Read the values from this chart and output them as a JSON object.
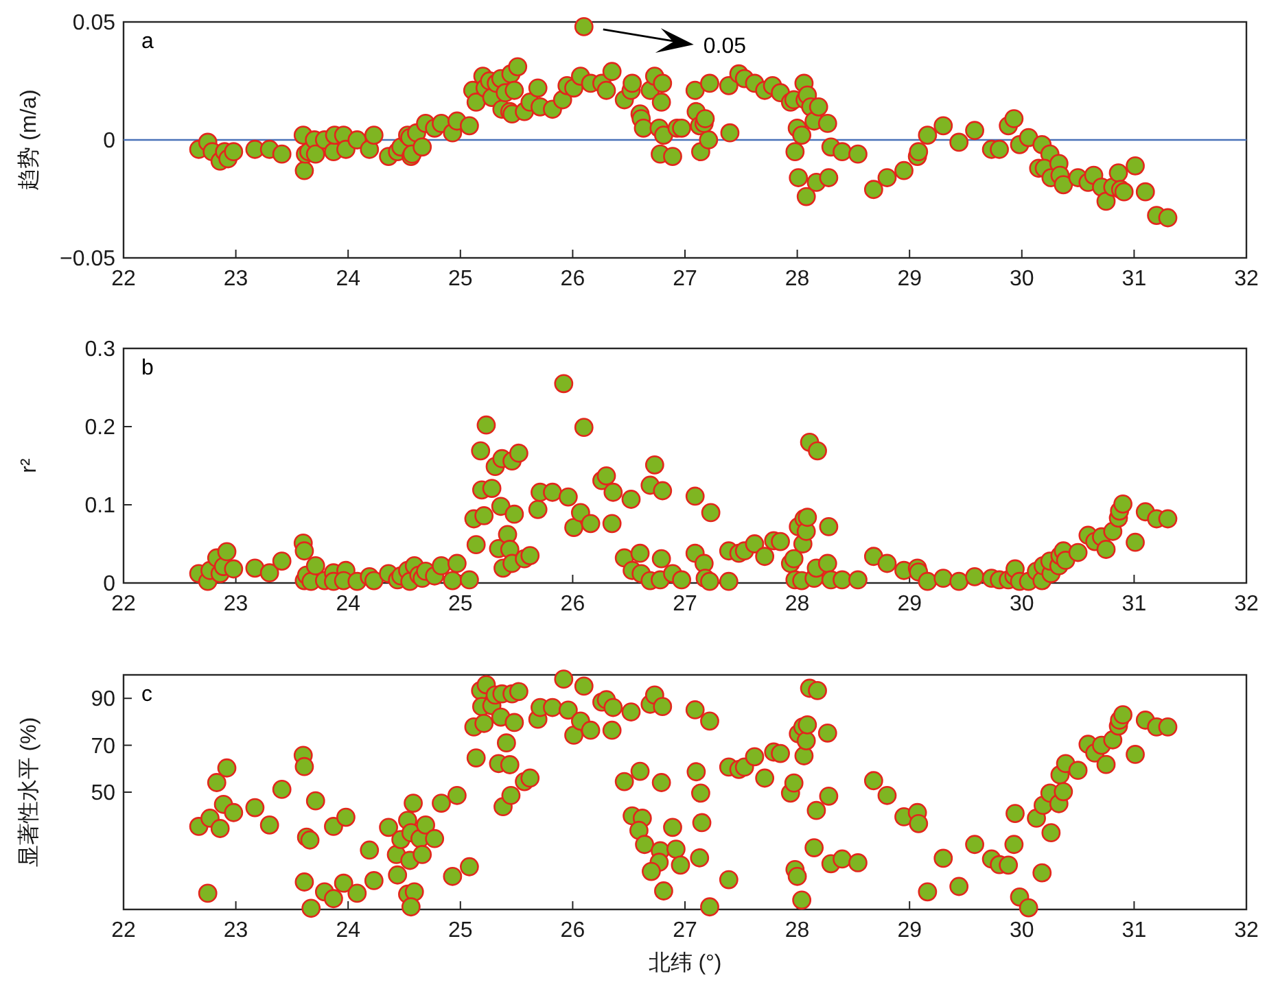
{
  "chart_data": [
    {
      "type": "scatter",
      "ylabel": "趋势 (m/a)",
      "annotations": [
        "a",
        "0.05"
      ],
      "marker": "circle",
      "xlim": [
        22,
        32
      ],
      "xticks": [
        22,
        23,
        24,
        25,
        26,
        27,
        28,
        29,
        30,
        31,
        32
      ],
      "ylim": [
        -0.05,
        0.05
      ],
      "yticks": [
        {
          "value": -0.05,
          "label": "−0.05"
        },
        0,
        0.05
      ],
      "ref_lines": [
        {
          "axis": "y",
          "value": 0,
          "color": "#4a72b8"
        }
      ],
      "x": [
        22.67,
        22.75,
        22.79,
        22.86,
        22.9,
        22.93,
        22.98,
        23.17,
        23.3,
        23.41,
        23.6,
        23.61,
        23.62,
        23.65,
        23.7,
        23.71,
        23.79,
        23.87,
        23.88,
        23.96,
        23.98,
        24.08,
        24.19,
        24.23,
        24.36,
        24.44,
        24.47,
        24.53,
        24.55,
        24.56,
        24.57,
        24.61,
        24.66,
        24.69,
        24.77,
        24.83,
        24.93,
        24.97,
        25.08,
        25.11,
        25.14,
        25.2,
        25.22,
        25.26,
        25.28,
        25.32,
        25.36,
        25.37,
        25.4,
        25.44,
        25.46,
        25.45,
        25.48,
        25.51,
        25.57,
        25.62,
        25.69,
        25.71,
        25.82,
        25.91,
        25.95,
        26.01,
        26.07,
        26.1,
        26.16,
        26.26,
        26.3,
        26.35,
        26.46,
        26.52,
        26.53,
        26.6,
        26.61,
        26.63,
        26.69,
        26.73,
        26.79,
        26.8,
        26.77,
        26.78,
        26.81,
        26.89,
        26.93,
        26.97,
        27.09,
        27.1,
        27.13,
        27.14,
        27.21,
        27.17,
        27.18,
        27.22,
        27.39,
        27.4,
        27.48,
        27.53,
        27.62,
        27.71,
        27.78,
        27.85,
        27.94,
        27.97,
        27.98,
        28.0,
        28.01,
        28.04,
        28.06,
        28.07,
        28.08,
        28.09,
        28.12,
        28.15,
        28.17,
        28.19,
        28.27,
        28.28,
        28.3,
        28.4,
        28.54,
        28.68,
        28.8,
        28.95,
        29.07,
        29.08,
        29.16,
        29.3,
        29.44,
        29.58,
        29.73,
        29.8,
        29.88,
        29.93,
        29.98,
        30.06,
        30.18,
        30.25,
        30.15,
        30.2,
        30.26,
        30.33,
        30.34,
        30.37,
        30.5,
        30.59,
        30.64,
        30.71,
        30.75,
        30.81,
        30.86,
        30.88,
        30.91,
        31.01,
        31.1,
        31.2,
        31.3
      ],
      "series": [
        {
          "color": "#7fb522",
          "values": [
            -0.004,
            -0.001,
            -0.005,
            -0.009,
            -0.005,
            -0.008,
            -0.005,
            -0.004,
            -0.004,
            -0.006,
            0.002,
            -0.013,
            -0.006,
            -0.005,
            0,
            -0.006,
            0,
            -0.005,
            0.002,
            0.002,
            -0.004,
            0,
            -0.004,
            0.002,
            -0.007,
            -0.005,
            -0.003,
            0.002,
            0.001,
            -0.007,
            -0.006,
            0.003,
            -0.003,
            0.007,
            0.005,
            0.007,
            0.003,
            0.008,
            0.006,
            0.021,
            0.016,
            0.027,
            0.022,
            0.025,
            0.018,
            0.024,
            0.026,
            0.013,
            0.02,
            0.012,
            0.011,
            0.028,
            0.021,
            0.031,
            0.012,
            0.016,
            0.022,
            0.014,
            0.013,
            0.017,
            0.023,
            0.022,
            0.027,
            0.048,
            0.024,
            0.024,
            0.021,
            0.029,
            0.017,
            0.021,
            0.024,
            0.011,
            0.009,
            0.005,
            0.021,
            0.027,
            0.016,
            0.024,
            0.005,
            -0.006,
            0.002,
            -0.007,
            0.005,
            0.005,
            0.021,
            0.012,
            0.006,
            -0.005,
            0,
            0.007,
            0.009,
            0.024,
            0.023,
            0.003,
            0.028,
            0.026,
            0.024,
            0.021,
            0.023,
            0.02,
            0.016,
            0.017,
            -0.005,
            0.005,
            -0.016,
            0.002,
            0.024,
            0.017,
            -0.024,
            0.019,
            0.014,
            0.008,
            -0.018,
            0.014,
            0.007,
            -0.016,
            -0.003,
            -0.005,
            -0.006,
            -0.021,
            -0.016,
            -0.013,
            -0.007,
            -0.005,
            0.002,
            0.006,
            -0.001,
            0.004,
            -0.004,
            -0.004,
            0.006,
            0.009,
            -0.002,
            0.001,
            -0.002,
            -0.006,
            -0.012,
            -0.012,
            -0.016,
            -0.01,
            -0.015,
            -0.019,
            -0.016,
            -0.018,
            -0.015,
            -0.02,
            -0.026,
            -0.02,
            -0.014,
            -0.021,
            -0.022,
            -0.011,
            -0.022,
            -0.032,
            -0.033
          ]
        }
      ]
    },
    {
      "type": "scatter",
      "ylabel": "r²",
      "annotations": [
        "b"
      ],
      "marker": "circle",
      "xlim": [
        22,
        32
      ],
      "xticks": [
        22,
        23,
        24,
        25,
        26,
        27,
        28,
        29,
        30,
        31,
        32
      ],
      "ylim": [
        0,
        0.3
      ],
      "yticks": [
        0,
        0.1,
        0.2,
        0.3
      ],
      "x": [
        22.67,
        22.75,
        22.77,
        22.83,
        22.86,
        22.89,
        22.92,
        22.98,
        23.17,
        23.3,
        23.41,
        23.6,
        23.61,
        23.61,
        23.63,
        23.67,
        23.71,
        23.79,
        23.87,
        23.87,
        23.98,
        23.96,
        24.08,
        24.19,
        24.23,
        24.36,
        24.44,
        24.47,
        24.53,
        24.55,
        24.59,
        24.63,
        24.66,
        24.69,
        24.77,
        24.83,
        24.93,
        24.97,
        25.08,
        25.12,
        25.14,
        25.18,
        25.19,
        25.21,
        25.23,
        25.28,
        25.31,
        25.34,
        25.36,
        25.37,
        25.38,
        25.42,
        25.44,
        25.46,
        25.46,
        25.48,
        25.52,
        25.57,
        25.62,
        25.69,
        25.71,
        25.82,
        25.92,
        25.96,
        26.01,
        26.07,
        26.1,
        26.16,
        26.26,
        26.3,
        26.35,
        26.36,
        26.46,
        26.52,
        26.53,
        26.6,
        26.61,
        26.69,
        26.73,
        26.79,
        26.8,
        26.69,
        26.78,
        26.89,
        26.97,
        27.09,
        27.09,
        27.23,
        27.17,
        27.18,
        27.22,
        27.39,
        27.39,
        27.48,
        27.53,
        27.62,
        27.71,
        27.79,
        27.85,
        27.94,
        27.97,
        27.98,
        28.01,
        28.04,
        28.05,
        28.06,
        28.08,
        28.09,
        28.11,
        28.18,
        28.15,
        28.17,
        28.27,
        28.28,
        28.3,
        28.4,
        28.54,
        28.68,
        28.8,
        28.95,
        29.07,
        29.08,
        29.16,
        29.3,
        29.44,
        29.58,
        29.73,
        29.8,
        29.88,
        29.93,
        29.94,
        29.98,
        30.06,
        30.13,
        30.18,
        30.19,
        30.26,
        30.25,
        30.33,
        30.34,
        30.37,
        30.39,
        30.5,
        30.59,
        30.65,
        30.71,
        30.75,
        30.81,
        30.86,
        30.87,
        30.9,
        31.01,
        31.1,
        31.2,
        31.3
      ],
      "series": [
        {
          "color": "#7fb522",
          "values": [
            0.012,
            0.002,
            0.016,
            0.032,
            0.012,
            0.021,
            0.04,
            0.018,
            0.019,
            0.013,
            0.028,
            0.051,
            0.041,
            0.003,
            0.01,
            0.002,
            0.022,
            0.003,
            0.013,
            0.002,
            0.016,
            0.003,
            0.002,
            0.008,
            0.003,
            0.012,
            0.004,
            0.009,
            0.016,
            0.002,
            0.022,
            0.01,
            0.006,
            0.015,
            0.009,
            0.022,
            0.003,
            0.025,
            0.004,
            0.082,
            0.049,
            0.169,
            0.119,
            0.086,
            0.202,
            0.121,
            0.149,
            0.044,
            0.098,
            0.159,
            0.019,
            0.062,
            0.043,
            0.156,
            0.025,
            0.088,
            0.166,
            0.031,
            0.035,
            0.094,
            0.116,
            0.116,
            0.255,
            0.11,
            0.071,
            0.09,
            0.199,
            0.076,
            0.131,
            0.137,
            0.076,
            0.116,
            0.032,
            0.107,
            0.016,
            0.038,
            0.012,
            0.125,
            0.151,
            0.031,
            0.118,
            0.003,
            0.004,
            0.012,
            0.004,
            0.111,
            0.038,
            0.09,
            0.025,
            0.006,
            0.002,
            0.041,
            0.002,
            0.038,
            0.041,
            0.05,
            0.034,
            0.054,
            0.053,
            0.025,
            0.031,
            0.004,
            0.072,
            0.003,
            0.05,
            0.082,
            0.066,
            0.084,
            0.18,
            0.169,
            0.006,
            0.019,
            0.025,
            0.072,
            0.004,
            0.004,
            0.004,
            0.034,
            0.025,
            0.016,
            0.019,
            0.014,
            0.002,
            0.006,
            0.002,
            0.008,
            0.006,
            0.004,
            0.004,
            0.009,
            0.018,
            0.002,
            0.002,
            0.015,
            0.003,
            0.022,
            0.012,
            0.028,
            0.022,
            0.035,
            0.041,
            0.029,
            0.039,
            0.061,
            0.053,
            0.059,
            0.043,
            0.066,
            0.083,
            0.092,
            0.101,
            0.052,
            0.091,
            0.082,
            0.082
          ]
        }
      ]
    },
    {
      "type": "scatter",
      "xlabel": "北纬 (°)",
      "ylabel": "显著性水平 (%)",
      "annotations": [
        "c"
      ],
      "marker": "circle",
      "xlim": [
        22,
        32
      ],
      "xticks": [
        22,
        23,
        24,
        25,
        26,
        27,
        28,
        29,
        30,
        31,
        32
      ],
      "ylim": [
        0,
        100
      ],
      "yticks": [
        50,
        70,
        90
      ],
      "x": [
        22.67,
        22.75,
        22.77,
        22.83,
        22.86,
        22.89,
        22.92,
        22.98,
        23.17,
        23.3,
        23.41,
        23.6,
        23.61,
        23.61,
        23.63,
        23.66,
        23.67,
        23.71,
        23.79,
        23.87,
        23.87,
        23.98,
        23.96,
        24.08,
        24.19,
        24.23,
        24.36,
        24.44,
        24.43,
        24.47,
        24.53,
        24.56,
        24.55,
        24.53,
        24.59,
        24.56,
        24.58,
        24.64,
        24.66,
        24.69,
        24.77,
        24.83,
        24.93,
        24.97,
        25.08,
        25.12,
        25.14,
        25.18,
        25.19,
        25.21,
        25.23,
        25.28,
        25.31,
        25.34,
        25.36,
        25.37,
        25.38,
        25.41,
        25.44,
        25.46,
        25.45,
        25.48,
        25.52,
        25.57,
        25.62,
        25.69,
        25.71,
        25.82,
        25.92,
        25.96,
        26.01,
        26.07,
        26.1,
        26.16,
        26.26,
        26.3,
        26.35,
        26.36,
        26.46,
        26.52,
        26.53,
        26.6,
        26.62,
        26.59,
        26.64,
        26.69,
        26.73,
        26.79,
        26.8,
        26.78,
        26.77,
        26.7,
        26.81,
        26.89,
        26.92,
        26.96,
        27.09,
        27.1,
        27.14,
        27.15,
        27.13,
        27.22,
        27.22,
        27.39,
        27.39,
        27.48,
        27.53,
        27.62,
        27.71,
        27.79,
        27.85,
        27.94,
        27.97,
        27.98,
        28.0,
        28.04,
        28.01,
        28.05,
        28.06,
        28.08,
        28.09,
        28.11,
        28.18,
        28.15,
        28.17,
        28.27,
        28.28,
        28.3,
        28.4,
        28.54,
        28.68,
        28.8,
        28.95,
        29.07,
        29.08,
        29.16,
        29.3,
        29.44,
        29.58,
        29.73,
        29.8,
        29.88,
        29.93,
        29.94,
        29.98,
        30.06,
        30.13,
        30.18,
        30.19,
        30.26,
        30.25,
        30.33,
        30.34,
        30.37,
        30.39,
        30.5,
        30.59,
        30.65,
        30.71,
        30.75,
        30.81,
        30.86,
        30.87,
        30.9,
        31.01,
        31.1,
        31.2,
        31.3
      ],
      "series": [
        {
          "color": "#7fb522",
          "values": [
            35.4,
            6.9,
            38.9,
            54.1,
            34.5,
            44.8,
            60.3,
            41.3,
            43.4,
            36.0,
            51.2,
            65.7,
            60.9,
            11.7,
            30.8,
            29.6,
            0.5,
            46.3,
            7.5,
            4.6,
            35.4,
            39.3,
            11.2,
            6.9,
            25.3,
            12.3,
            35.0,
            14.7,
            23.4,
            29.8,
            38.0,
            32.7,
            20.9,
            6.5,
            7.5,
            1.1,
            45.3,
            30.2,
            23.4,
            36.0,
            30.2,
            45.3,
            14.1,
            48.6,
            18.2,
            77.8,
            64.6,
            93.3,
            86.5,
            79.3,
            95.8,
            86.9,
            91.4,
            62.2,
            82.0,
            91.9,
            43.8,
            71.0,
            61.7,
            91.9,
            48.6,
            79.7,
            92.9,
            54.5,
            56.0,
            81.1,
            86.1,
            86.1,
            98.2,
            85.0,
            74.3,
            80.3,
            95.2,
            76.4,
            88.4,
            89.4,
            76.4,
            86.1,
            54.5,
            84.2,
            39.9,
            58.9,
            38.9,
            33.7,
            27.7,
            87.5,
            91.4,
            54.1,
            86.5,
            25.0,
            20.1,
            16.2,
            7.9,
            35.0,
            25.7,
            18.9,
            85.1,
            58.7,
            49.6,
            37.0,
            22.0,
            80.3,
            1.1,
            60.7,
            12.7,
            59.7,
            60.7,
            65.1,
            56.0,
            67.1,
            66.5,
            49.6,
            53.9,
            17.0,
            14.1,
            4.0,
            74.9,
            77.8,
            65.5,
            71.9,
            78.7,
            94.3,
            93.3,
            26.3,
            42.2,
            75.2,
            48.3,
            19.5,
            21.5,
            19.9,
            54.9,
            48.6,
            39.5,
            41.3,
            36.6,
            7.5,
            21.8,
            9.8,
            27.7,
            21.5,
            19.1,
            18.9,
            27.7,
            40.9,
            5.3,
            0.7,
            38.9,
            15.6,
            44.4,
            32.7,
            49.6,
            45.1,
            57.4,
            50.2,
            62.2,
            59.3,
            70.4,
            66.7,
            70.0,
            61.8,
            72.3,
            78.2,
            80.7,
            83.0,
            66.1,
            80.7,
            77.8,
            77.8
          ]
        }
      ]
    }
  ]
}
